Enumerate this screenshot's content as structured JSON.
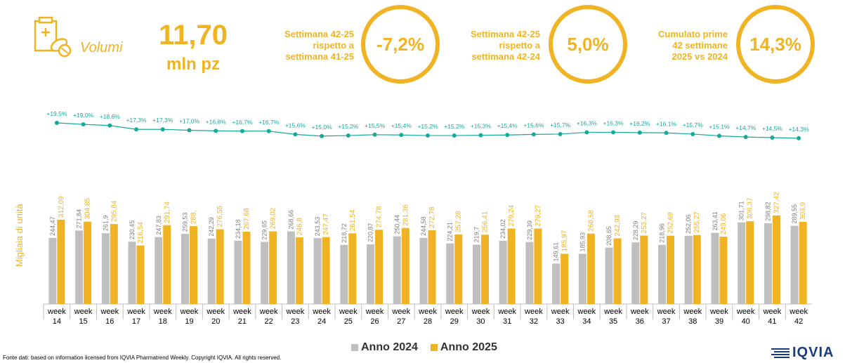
{
  "header": {
    "icon": "pills-box-icon",
    "section_label": "Volumi",
    "total_value": "11,70",
    "total_unit": "mln pz"
  },
  "kpis": [
    {
      "lines": [
        "Settimana 42-25",
        "rispetto a",
        "settimana 41-25"
      ],
      "value": "-7,2%"
    },
    {
      "lines": [
        "Settimana 42-25",
        "rispetto a",
        "settimana 42-24"
      ],
      "value": "5,0%"
    },
    {
      "lines": [
        "Cumulato prime",
        "42 settimane",
        "2025 vs 2024"
      ],
      "value": "14,3%"
    }
  ],
  "colors": {
    "accent": "#F0B323",
    "series_2024": "#BFBFBF",
    "series_2025": "#F0B323",
    "line": "#17A99A"
  },
  "chart_data": {
    "type": "bar",
    "ylabel": "Migliaia di unità",
    "categories": [
      "week 14",
      "week 15",
      "week 16",
      "week 17",
      "week 18",
      "week 19",
      "week 20",
      "week 21",
      "week 22",
      "week 23",
      "week 24",
      "week 25",
      "week 26",
      "week 27",
      "week 28",
      "week 29",
      "week 30",
      "week 31",
      "week 32",
      "week 33",
      "week 34",
      "week 35",
      "week 36",
      "week 37",
      "week 38",
      "week 39",
      "week 40",
      "week 41",
      "week 42"
    ],
    "category_lines": [
      [
        "week",
        "14"
      ],
      [
        "week",
        "15"
      ],
      [
        "week",
        "16"
      ],
      [
        "week",
        "17"
      ],
      [
        "week",
        "18"
      ],
      [
        "week",
        "19"
      ],
      [
        "week",
        "20"
      ],
      [
        "week",
        "21"
      ],
      [
        "week",
        "22"
      ],
      [
        "week",
        "23"
      ],
      [
        "week",
        "24"
      ],
      [
        "week",
        "25"
      ],
      [
        "week",
        "26"
      ],
      [
        "week",
        "27"
      ],
      [
        "week",
        "28"
      ],
      [
        "week",
        "29"
      ],
      [
        "week",
        "30"
      ],
      [
        "week",
        "31"
      ],
      [
        "week",
        "32"
      ],
      [
        "week",
        "33"
      ],
      [
        "week",
        "34"
      ],
      [
        "week",
        "35"
      ],
      [
        "week",
        "36"
      ],
      [
        "week",
        "37"
      ],
      [
        "week",
        "38"
      ],
      [
        "week",
        "39"
      ],
      [
        "week",
        "40"
      ],
      [
        "week",
        "41"
      ],
      [
        "week",
        "42"
      ]
    ],
    "series": [
      {
        "name": "Anno 2024",
        "values": [
          244.47,
          271.84,
          261.9,
          230.45,
          247.83,
          259.53,
          242.29,
          234.18,
          229.65,
          268.66,
          243.53,
          218.72,
          220.87,
          250.44,
          244.58,
          224.21,
          219.7,
          234.02,
          229.39,
          149.61,
          185.93,
          208.65,
          228.29,
          218.96,
          252.06,
          263.41,
          301.71,
          298.82,
          289.55
        ],
        "labels": [
          "244,47",
          "271,84",
          "261,9",
          "230,45",
          "247,83",
          "259,53",
          "242,29",
          "234,18",
          "229,65",
          "268,66",
          "243,53",
          "218,72",
          "220,87",
          "250,44",
          "244,58",
          "224,21",
          "219,7",
          "234,02",
          "229,39",
          "149,61",
          "185,93",
          "208,65",
          "228,29",
          "218,96",
          "252,06",
          "263,41",
          "301,71",
          "298,82",
          "289,55"
        ]
      },
      {
        "name": "Anno 2025",
        "values": [
          312.09,
          304.85,
          295.84,
          216.54,
          291.74,
          288.0,
          276.55,
          267.68,
          269.02,
          246.8,
          247.47,
          261.54,
          274.78,
          281.36,
          272.78,
          257.28,
          256.41,
          279.24,
          279.27,
          185.97,
          260.58,
          242.93,
          253.27,
          252.69,
          255.27,
          249.06,
          306.37,
          327.42,
          303.9
        ],
        "labels": [
          "312,09",
          "304,85",
          "295,84",
          "216,54",
          "291,74",
          "288,",
          "276,55",
          "267,68",
          "269,02",
          "246,8",
          "247,47",
          "261,54",
          "274,78",
          "281,36",
          "272,78",
          "257,28",
          "256,41",
          "279,24",
          "279,27",
          "185,97",
          "260,58",
          "242,93",
          "253,27",
          "252,69",
          "255,27",
          "249,06",
          "306,37",
          "327,42",
          "303,9"
        ]
      }
    ],
    "cumulative_growth": {
      "values": [
        19.5,
        19.0,
        18.6,
        17.3,
        17.3,
        17.0,
        16.8,
        16.7,
        16.7,
        15.6,
        15.0,
        15.2,
        15.5,
        15.4,
        15.2,
        15.2,
        15.3,
        15.4,
        15.6,
        15.7,
        16.3,
        16.3,
        16.2,
        16.1,
        15.7,
        15.1,
        14.7,
        14.5,
        14.3
      ],
      "labels": [
        "+19,5%",
        "+19,0%",
        "+18,6%",
        "+17,3%",
        "+17,3%",
        "+17,0%",
        "+16,8%",
        "+16,7%",
        "+16,7%",
        "+15,6%",
        "+15,0%",
        "+15,2%",
        "+15,5%",
        "+15,4%",
        "+15,2%",
        "+15,2%",
        "+15,3%",
        "+15,4%",
        "+15,6%",
        "+15,7%",
        "+16,3%",
        "+16,3%",
        "+16,2%",
        "+16,1%",
        "+15,7%",
        "+15,1%",
        "+14,7%",
        "+14,5%",
        "+14,3%"
      ]
    },
    "legend_position": "bottom",
    "grid": false
  },
  "legend": {
    "items": [
      "Anno 2024",
      "Anno 2025"
    ]
  },
  "footer": {
    "source": "Fonte dati: based on information licensed from IQVIA Pharmatrend Weekly. Copyright IQVIA. All rights reserved.",
    "logo_text": "IQVIA"
  }
}
